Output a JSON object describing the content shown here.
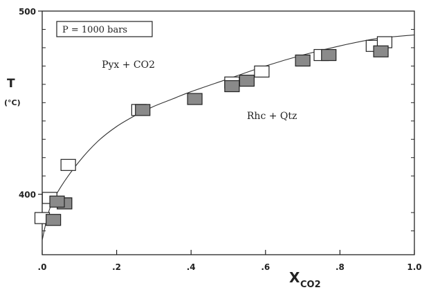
{
  "chart_data": {
    "type": "scatter",
    "title": "",
    "xlabel": "X",
    "xlabel_subscript": "CO2",
    "ylabel": "T",
    "ylabel_unit": "(°C)",
    "xlim": [
      0.0,
      1.0
    ],
    "ylim": [
      367,
      500
    ],
    "x_tick_labels": [
      ".0",
      ".2",
      ".4",
      ".6",
      ".8",
      "1.0"
    ],
    "x_tick_values": [
      0.0,
      0.2,
      0.4,
      0.6,
      0.8,
      1.0
    ],
    "y_tick_labels": [
      "400",
      "500"
    ],
    "y_tick_values": [
      400,
      500
    ],
    "y_minor_ticks": [
      380,
      390,
      410,
      420,
      430,
      440,
      450,
      460,
      470,
      480,
      490
    ],
    "grid": false,
    "condition_box": "P = 1000 bars",
    "field_labels": [
      {
        "text": "Pyx + CO2",
        "x": 0.16,
        "y": 469
      },
      {
        "text": "Rhc + Qtz",
        "x": 0.55,
        "y": 441
      }
    ],
    "curve": {
      "name": "",
      "x": [
        0.0,
        0.02,
        0.05,
        0.1,
        0.15,
        0.2,
        0.25,
        0.3,
        0.35,
        0.4,
        0.5,
        0.6,
        0.7,
        0.8,
        0.9,
        1.0
      ],
      "y": [
        375,
        392,
        404,
        418,
        429,
        437,
        443,
        448,
        452,
        456,
        463,
        470,
        476,
        481,
        485,
        487
      ]
    },
    "series": [
      {
        "name": "",
        "style": "open-square",
        "points": [
          {
            "x": 0.0,
            "y": 387
          },
          {
            "x": 0.02,
            "y": 398
          },
          {
            "x": 0.06,
            "y": 395
          },
          {
            "x": 0.07,
            "y": 416
          },
          {
            "x": 0.26,
            "y": 446
          },
          {
            "x": 0.51,
            "y": 461
          },
          {
            "x": 0.59,
            "y": 467
          },
          {
            "x": 0.75,
            "y": 476
          },
          {
            "x": 0.89,
            "y": 481
          },
          {
            "x": 0.92,
            "y": 483
          }
        ]
      },
      {
        "name": "",
        "style": "filled-square",
        "points": [
          {
            "x": 0.03,
            "y": 386
          },
          {
            "x": 0.06,
            "y": 395
          },
          {
            "x": 0.04,
            "y": 396
          },
          {
            "x": 0.27,
            "y": 446
          },
          {
            "x": 0.41,
            "y": 452
          },
          {
            "x": 0.51,
            "y": 459
          },
          {
            "x": 0.55,
            "y": 462
          },
          {
            "x": 0.7,
            "y": 473
          },
          {
            "x": 0.77,
            "y": 476
          },
          {
            "x": 0.91,
            "y": 478
          }
        ]
      }
    ]
  },
  "colors": {
    "axis": "#222222",
    "curve": "#333333",
    "open_fill": "#ffffff",
    "filled_fill": "#8a8a8a",
    "marker_stroke": "#222222"
  }
}
